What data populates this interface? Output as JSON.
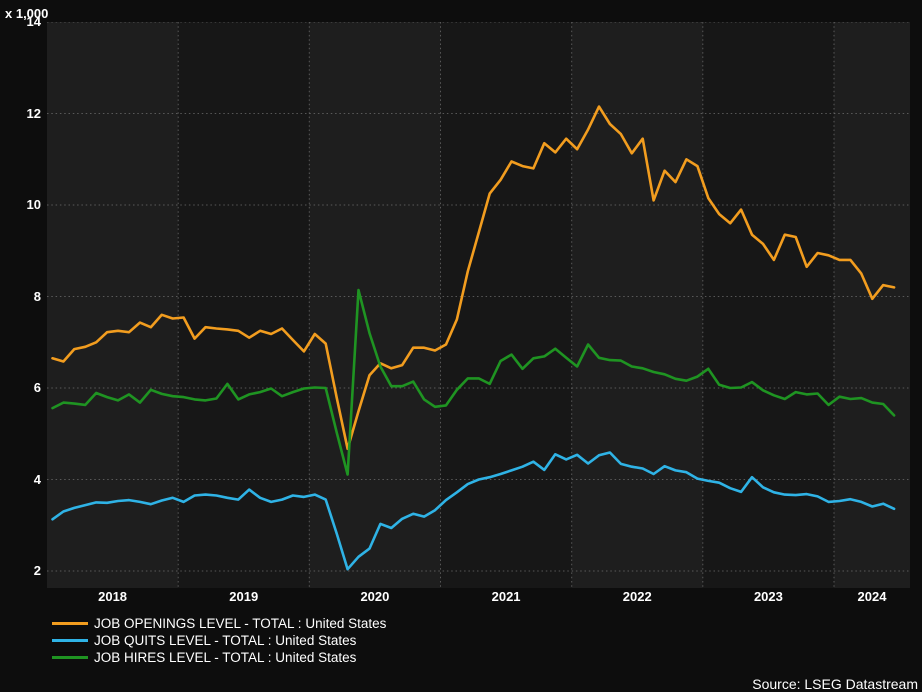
{
  "window": {
    "background": "#0d0d0d"
  },
  "y_axis": {
    "multiplier_label": "x 1,000",
    "tick_labels": [
      "14",
      "12",
      "10",
      "8",
      "6",
      "4",
      "2"
    ]
  },
  "x_axis": {
    "year_labels": [
      "2018",
      "2019",
      "2020",
      "2021",
      "2022",
      "2023",
      "2024"
    ]
  },
  "source": {
    "label": "Source: LSEG Datastream"
  },
  "colors": {
    "background": "#0d0d0d",
    "plot_band_light": "#1e1e1e",
    "plot_band_dark": "#171717",
    "grid": "#8c8c8c",
    "text": "#ffffff",
    "openings_line": "#f29d1f",
    "quits_line": "#2fb3e6",
    "hires_line": "#1f9422"
  },
  "chart_data": {
    "type": "line",
    "frequency": "monthly",
    "x_start": "2018-01",
    "x_end": "2024-06",
    "x_tick_labels": [
      "2018",
      "2019",
      "2020",
      "2021",
      "2022",
      "2023",
      "2024"
    ],
    "ylim": [
      2,
      14
    ],
    "y_ticks": [
      2,
      4,
      6,
      8,
      10,
      12,
      14
    ],
    "y_multiplier": "x 1,000",
    "grid": "dotted",
    "legend_position": "bottom-left",
    "series": [
      {
        "name": "JOB OPENINGS LEVEL - TOTAL : United States",
        "color": "#f29d1f",
        "values": [
          6.65,
          6.58,
          6.85,
          6.9,
          7.0,
          7.22,
          7.25,
          7.22,
          7.43,
          7.33,
          7.6,
          7.52,
          7.54,
          7.08,
          7.33,
          7.3,
          7.28,
          7.25,
          7.1,
          7.25,
          7.18,
          7.3,
          7.05,
          6.8,
          7.18,
          6.97,
          5.79,
          4.67,
          5.49,
          6.28,
          6.54,
          6.43,
          6.5,
          6.88,
          6.88,
          6.82,
          6.95,
          7.5,
          8.55,
          9.4,
          10.25,
          10.55,
          10.95,
          10.85,
          10.8,
          11.35,
          11.15,
          11.45,
          11.22,
          11.65,
          12.15,
          11.77,
          11.55,
          11.13,
          11.45,
          10.1,
          10.75,
          10.5,
          11.0,
          10.85,
          10.15,
          9.8,
          9.6,
          9.9,
          9.35,
          9.15,
          8.8,
          9.35,
          9.3,
          8.65,
          8.95,
          8.9,
          8.8,
          8.8,
          8.5,
          7.95,
          8.25,
          8.2
        ]
      },
      {
        "name": "JOB QUITS LEVEL - TOTAL : United States",
        "color": "#2fb3e6",
        "values": [
          3.13,
          3.3,
          3.38,
          3.44,
          3.5,
          3.49,
          3.53,
          3.55,
          3.51,
          3.46,
          3.54,
          3.6,
          3.51,
          3.65,
          3.67,
          3.65,
          3.6,
          3.56,
          3.78,
          3.6,
          3.51,
          3.56,
          3.65,
          3.62,
          3.67,
          3.56,
          2.82,
          2.04,
          2.31,
          2.49,
          3.03,
          2.94,
          3.14,
          3.25,
          3.19,
          3.33,
          3.55,
          3.72,
          3.9,
          4.0,
          4.05,
          4.12,
          4.2,
          4.28,
          4.39,
          4.21,
          4.55,
          4.44,
          4.54,
          4.35,
          4.53,
          4.59,
          4.34,
          4.28,
          4.24,
          4.12,
          4.29,
          4.2,
          4.16,
          4.02,
          3.97,
          3.93,
          3.81,
          3.73,
          4.05,
          3.83,
          3.72,
          3.67,
          3.66,
          3.68,
          3.63,
          3.51,
          3.53,
          3.57,
          3.51,
          3.41,
          3.47,
          3.36
        ]
      },
      {
        "name": "JOB HIRES LEVEL - TOTAL : United States",
        "color": "#1f9422",
        "values": [
          5.56,
          5.68,
          5.66,
          5.63,
          5.89,
          5.8,
          5.73,
          5.86,
          5.68,
          5.96,
          5.87,
          5.82,
          5.8,
          5.75,
          5.73,
          5.77,
          6.09,
          5.75,
          5.86,
          5.91,
          5.99,
          5.82,
          5.91,
          5.99,
          6.01,
          6.0,
          5.03,
          4.11,
          8.14,
          7.2,
          6.47,
          6.04,
          6.04,
          6.14,
          5.75,
          5.59,
          5.62,
          5.96,
          6.21,
          6.21,
          6.09,
          6.59,
          6.73,
          6.42,
          6.65,
          6.69,
          6.86,
          6.66,
          6.47,
          6.95,
          6.66,
          6.61,
          6.6,
          6.47,
          6.43,
          6.35,
          6.3,
          6.2,
          6.16,
          6.25,
          6.42,
          6.07,
          6.0,
          6.01,
          6.13,
          5.95,
          5.84,
          5.76,
          5.91,
          5.86,
          5.88,
          5.63,
          5.81,
          5.76,
          5.78,
          5.68,
          5.65,
          5.4
        ]
      }
    ]
  }
}
